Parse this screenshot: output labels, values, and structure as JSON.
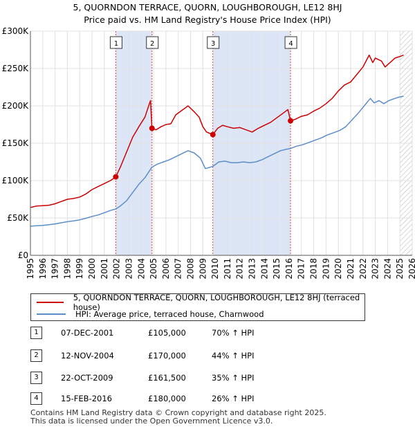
{
  "title_line1": "5, QUORNDON TERRACE, QUORN, LOUGHBOROUGH, LE12 8HJ",
  "title_line2": "Price paid vs. HM Land Registry's House Price Index (HPI)",
  "colors": {
    "property": "#cc0000",
    "hpi": "#5b8ec9",
    "shade": "#dde6f7",
    "grid": "#e0e0e0",
    "vline": "#dd4444"
  },
  "legend": {
    "property_label": "5, QUORNDON TERRACE, QUORN, LOUGHBOROUGH, LE12 8HJ (terraced house)",
    "hpi_label": "HPI: Average price, terraced house, Charnwood"
  },
  "sales": [
    {
      "num": "1",
      "date": "07-DEC-2001",
      "price": "£105,000",
      "hpi": "70% ↑ HPI"
    },
    {
      "num": "2",
      "date": "12-NOV-2004",
      "price": "£170,000",
      "hpi": "44% ↑ HPI"
    },
    {
      "num": "3",
      "date": "22-OCT-2009",
      "price": "£161,500",
      "hpi": "35% ↑ HPI"
    },
    {
      "num": "4",
      "date": "15-FEB-2016",
      "price": "£180,000",
      "hpi": "26% ↑ HPI"
    }
  ],
  "footer": {
    "line1": "Contains HM Land Registry data © Crown copyright and database right 2025.",
    "line2": "This data is licensed under the Open Government Licence v3.0."
  },
  "chart_data": {
    "type": "line",
    "xlim": [
      1995,
      2026
    ],
    "ylim": [
      0,
      300000
    ],
    "y_ticks": [
      0,
      50000,
      100000,
      150000,
      200000,
      250000,
      300000
    ],
    "y_tick_labels": [
      "£0",
      "£50K",
      "£100K",
      "£150K",
      "£200K",
      "£250K",
      "£300K"
    ],
    "x_ticks": [
      1995,
      1996,
      1997,
      1998,
      1999,
      2000,
      2001,
      2002,
      2003,
      2004,
      2005,
      2006,
      2007,
      2008,
      2009,
      2010,
      2011,
      2012,
      2013,
      2014,
      2015,
      2016,
      2017,
      2018,
      2019,
      2020,
      2021,
      2022,
      2023,
      2024,
      2025,
      2026
    ],
    "x_tick_labels": [
      "1995",
      "1996",
      "1997",
      "1998",
      "1999",
      "2000",
      "2001",
      "2002",
      "2003",
      "2004",
      "2005",
      "2006",
      "2007",
      "2008",
      "2009",
      "2010",
      "2011",
      "2012",
      "2013",
      "2014",
      "2015",
      "2016",
      "2017",
      "2018",
      "2019",
      "2020",
      "2021",
      "2022",
      "2023",
      "2024",
      "2025",
      "2026"
    ],
    "shaded_ranges": [
      [
        2001.93,
        2004.87
      ],
      [
        2009.81,
        2016.12
      ]
    ],
    "future_start": 2025.0,
    "series": [
      {
        "name": "5, QUORNDON TERRACE, QUORN, LOUGHBOROUGH, LE12 8HJ (terraced house)",
        "key": "property",
        "points": [
          [
            1995.0,
            64000
          ],
          [
            1995.5,
            66000
          ],
          [
            1996.0,
            66500
          ],
          [
            1996.5,
            67000
          ],
          [
            1997.0,
            69000
          ],
          [
            1997.5,
            72000
          ],
          [
            1998.0,
            75000
          ],
          [
            1998.5,
            76000
          ],
          [
            1999.0,
            78000
          ],
          [
            1999.5,
            82000
          ],
          [
            2000.0,
            88000
          ],
          [
            2000.5,
            92000
          ],
          [
            2001.0,
            96000
          ],
          [
            2001.5,
            100000
          ],
          [
            2001.93,
            105000
          ],
          [
            2002.3,
            118000
          ],
          [
            2002.8,
            138000
          ],
          [
            2003.3,
            158000
          ],
          [
            2003.8,
            172000
          ],
          [
            2004.3,
            185000
          ],
          [
            2004.6,
            200000
          ],
          [
            2004.75,
            207000
          ],
          [
            2004.87,
            170000
          ],
          [
            2005.2,
            168000
          ],
          [
            2005.6,
            172000
          ],
          [
            2006.0,
            175000
          ],
          [
            2006.4,
            176000
          ],
          [
            2006.8,
            188000
          ],
          [
            2007.3,
            194000
          ],
          [
            2007.8,
            200000
          ],
          [
            2008.3,
            192000
          ],
          [
            2008.7,
            185000
          ],
          [
            2009.0,
            172000
          ],
          [
            2009.3,
            165000
          ],
          [
            2009.6,
            163000
          ],
          [
            2009.81,
            161500
          ],
          [
            2010.2,
            170000
          ],
          [
            2010.6,
            174000
          ],
          [
            2011.0,
            172000
          ],
          [
            2011.5,
            170000
          ],
          [
            2012.0,
            171000
          ],
          [
            2012.5,
            168000
          ],
          [
            2013.0,
            165000
          ],
          [
            2013.5,
            170000
          ],
          [
            2014.0,
            174000
          ],
          [
            2014.5,
            178000
          ],
          [
            2015.0,
            184000
          ],
          [
            2015.5,
            190000
          ],
          [
            2015.9,
            195000
          ],
          [
            2016.12,
            180000
          ],
          [
            2016.5,
            182000
          ],
          [
            2017.0,
            186000
          ],
          [
            2017.5,
            188000
          ],
          [
            2018.0,
            193000
          ],
          [
            2018.5,
            197000
          ],
          [
            2019.0,
            203000
          ],
          [
            2019.5,
            210000
          ],
          [
            2020.0,
            220000
          ],
          [
            2020.5,
            228000
          ],
          [
            2021.0,
            232000
          ],
          [
            2021.5,
            242000
          ],
          [
            2022.0,
            252000
          ],
          [
            2022.5,
            268000
          ],
          [
            2022.8,
            258000
          ],
          [
            2023.0,
            264000
          ],
          [
            2023.5,
            260000
          ],
          [
            2023.8,
            252000
          ],
          [
            2024.2,
            258000
          ],
          [
            2024.6,
            264000
          ],
          [
            2025.0,
            266000
          ],
          [
            2025.3,
            268000
          ]
        ]
      },
      {
        "name": "HPI: Average price, terraced house, Charnwood",
        "key": "hpi",
        "points": [
          [
            1995.0,
            39000
          ],
          [
            1995.5,
            39500
          ],
          [
            1996.0,
            40000
          ],
          [
            1996.5,
            41000
          ],
          [
            1997.0,
            42000
          ],
          [
            1997.5,
            43500
          ],
          [
            1998.0,
            45000
          ],
          [
            1998.5,
            46000
          ],
          [
            1999.0,
            47500
          ],
          [
            1999.5,
            49500
          ],
          [
            2000.0,
            52000
          ],
          [
            2000.5,
            54000
          ],
          [
            2001.0,
            57000
          ],
          [
            2001.5,
            60000
          ],
          [
            2001.93,
            62000
          ],
          [
            2002.3,
            66000
          ],
          [
            2002.8,
            73000
          ],
          [
            2003.3,
            84000
          ],
          [
            2003.8,
            95000
          ],
          [
            2004.3,
            104000
          ],
          [
            2004.87,
            118000
          ],
          [
            2005.3,
            122000
          ],
          [
            2005.8,
            125000
          ],
          [
            2006.3,
            128000
          ],
          [
            2006.8,
            132000
          ],
          [
            2007.3,
            136000
          ],
          [
            2007.8,
            140000
          ],
          [
            2008.3,
            137000
          ],
          [
            2008.8,
            130000
          ],
          [
            2009.2,
            116000
          ],
          [
            2009.81,
            119000
          ],
          [
            2010.3,
            125000
          ],
          [
            2010.8,
            126000
          ],
          [
            2011.3,
            124000
          ],
          [
            2011.8,
            124000
          ],
          [
            2012.3,
            125000
          ],
          [
            2012.8,
            124000
          ],
          [
            2013.3,
            125000
          ],
          [
            2013.8,
            128000
          ],
          [
            2014.3,
            132000
          ],
          [
            2014.8,
            136000
          ],
          [
            2015.3,
            140000
          ],
          [
            2015.8,
            142000
          ],
          [
            2016.12,
            143000
          ],
          [
            2016.6,
            146000
          ],
          [
            2017.1,
            148000
          ],
          [
            2017.6,
            151000
          ],
          [
            2018.1,
            154000
          ],
          [
            2018.6,
            157000
          ],
          [
            2019.1,
            161000
          ],
          [
            2019.6,
            164000
          ],
          [
            2020.1,
            167000
          ],
          [
            2020.6,
            172000
          ],
          [
            2021.1,
            181000
          ],
          [
            2021.6,
            190000
          ],
          [
            2022.1,
            200000
          ],
          [
            2022.6,
            210000
          ],
          [
            2022.9,
            204000
          ],
          [
            2023.3,
            207000
          ],
          [
            2023.7,
            203000
          ],
          [
            2024.1,
            207000
          ],
          [
            2024.6,
            210000
          ],
          [
            2025.0,
            212000
          ],
          [
            2025.3,
            213000
          ]
        ]
      }
    ],
    "sale_markers": [
      {
        "label": "1",
        "x": 2001.93,
        "y": 105000
      },
      {
        "label": "2",
        "x": 2004.87,
        "y": 170000
      },
      {
        "label": "3",
        "x": 2009.81,
        "y": 161500
      },
      {
        "label": "4",
        "x": 2016.12,
        "y": 180000
      }
    ]
  }
}
